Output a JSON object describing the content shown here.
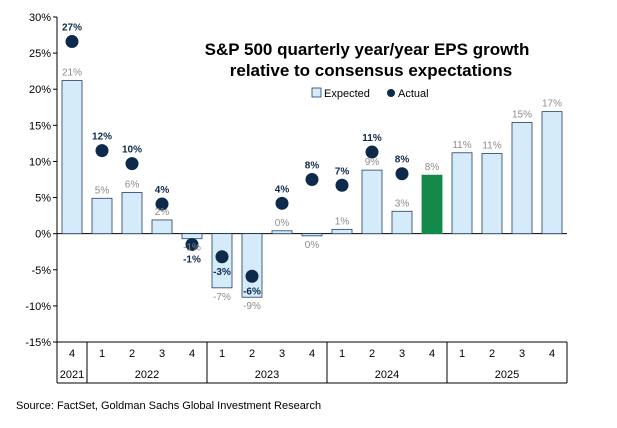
{
  "chart_data": {
    "type": "bar",
    "title_line1": "S&P 500 quarterly year/year EPS growth",
    "title_line2": "relative to consensus expectations",
    "ylim": [
      -15,
      30
    ],
    "y_ticks": [
      "-15%",
      "-10%",
      "-5%",
      "0%",
      "5%",
      "10%",
      "15%",
      "20%",
      "25%",
      "30%"
    ],
    "y_tick_values": [
      -15,
      -10,
      -5,
      0,
      5,
      10,
      15,
      20,
      25,
      30
    ],
    "categories": [
      "4",
      "1",
      "2",
      "3",
      "4",
      "1",
      "2",
      "3",
      "4",
      "1",
      "2",
      "3",
      "4",
      "1",
      "2",
      "3",
      "4"
    ],
    "years": [
      {
        "label": "2021",
        "count": 1
      },
      {
        "label": "2022",
        "count": 4
      },
      {
        "label": "2023",
        "count": 4
      },
      {
        "label": "2024",
        "count": 4
      },
      {
        "label": "2025",
        "count": 4
      }
    ],
    "series": [
      {
        "name": "Expected",
        "values": [
          21.2,
          4.9,
          5.7,
          1.9,
          -0.7,
          -7.5,
          -8.8,
          0.4,
          -0.3,
          0.6,
          8.8,
          3.1,
          8.1,
          11.2,
          11.1,
          15.4,
          16.9
        ],
        "labels": [
          "21%",
          "5%",
          "6%",
          "2%",
          "-1%",
          "-7%",
          "-9%",
          "0%",
          "0%",
          "1%",
          "9%",
          "3%",
          "8%",
          "11%",
          "11%",
          "15%",
          "17%"
        ]
      },
      {
        "name": "Actual",
        "values": [
          26.6,
          11.5,
          9.7,
          4.1,
          -1.5,
          -3.2,
          -5.9,
          4.2,
          7.5,
          6.7,
          11.3,
          8.3,
          null,
          null,
          null,
          null,
          null
        ],
        "labels": [
          "27%",
          "12%",
          "10%",
          "4%",
          "-1%",
          "-3%",
          "-6%",
          "4%",
          "8%",
          "7%",
          "11%",
          "8%",
          null,
          null,
          null,
          null,
          null
        ]
      }
    ],
    "highlight_index": 12,
    "legend": [
      "Expected",
      "Actual"
    ],
    "legend_position": "top-right",
    "source": "Source: FactSet, Goldman Sachs Global Investment Research",
    "colors": {
      "bar_fill": "#d6ebfa",
      "bar_stroke": "#1f3f63",
      "highlight_fill": "#13894a",
      "dot": "#0d2a4a",
      "exp_label": "#8c8c8c",
      "act_label": "#0d2a4a"
    }
  }
}
